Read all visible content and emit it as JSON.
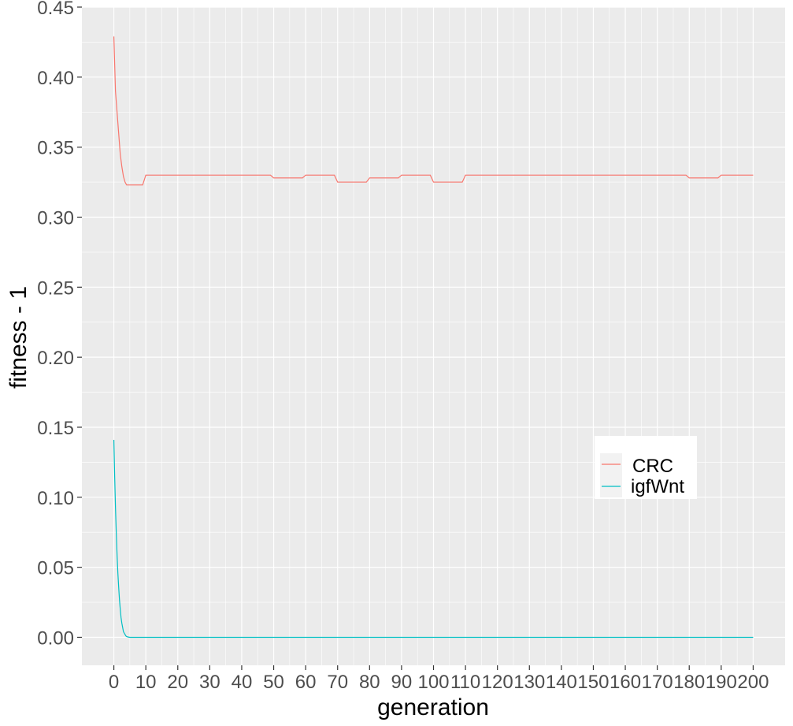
{
  "chart_data": {
    "type": "line",
    "title": "",
    "xlabel": "generation",
    "ylabel": "fitness - 1",
    "xlim": [
      -10,
      210
    ],
    "ylim": [
      -0.02,
      0.45
    ],
    "x_ticks": [
      0,
      10,
      20,
      30,
      40,
      50,
      60,
      70,
      80,
      90,
      100,
      110,
      120,
      130,
      140,
      150,
      160,
      170,
      180,
      190,
      200
    ],
    "x_tick_labels": [
      "0",
      "10",
      "20",
      "30",
      "40",
      "50",
      "60",
      "70",
      "80",
      "90",
      "100",
      "110",
      "120",
      "130",
      "140",
      "150",
      "160",
      "170",
      "180",
      "190",
      "200"
    ],
    "y_ticks": [
      0.0,
      0.05,
      0.1,
      0.15,
      0.2,
      0.25,
      0.3,
      0.35,
      0.4,
      0.45
    ],
    "y_tick_labels": [
      "0.00",
      "0.05",
      "0.10",
      "0.15",
      "0.20",
      "0.25",
      "0.30",
      "0.35",
      "0.40",
      "0.45"
    ],
    "grid": true,
    "panel_background": "#ebebeb",
    "legend_position": "right-middle",
    "series": [
      {
        "name": "CRC",
        "color": "#f8766d",
        "x": [
          0,
          0.5,
          1,
          1.5,
          2,
          2.5,
          3,
          3.5,
          4,
          5,
          6,
          7,
          8,
          9,
          10,
          11,
          20,
          30,
          40,
          49,
          50,
          59,
          60,
          69,
          70,
          79,
          80,
          89,
          90,
          99,
          100,
          109,
          110,
          120,
          130,
          140,
          150,
          160,
          170,
          179,
          180,
          189,
          190,
          200
        ],
        "y": [
          0.429,
          0.39,
          0.375,
          0.36,
          0.345,
          0.336,
          0.329,
          0.325,
          0.323,
          0.323,
          0.323,
          0.323,
          0.323,
          0.323,
          0.33,
          0.33,
          0.33,
          0.33,
          0.33,
          0.33,
          0.328,
          0.328,
          0.33,
          0.33,
          0.325,
          0.325,
          0.328,
          0.328,
          0.33,
          0.33,
          0.325,
          0.325,
          0.33,
          0.33,
          0.33,
          0.33,
          0.33,
          0.33,
          0.33,
          0.33,
          0.328,
          0.328,
          0.33,
          0.33
        ]
      },
      {
        "name": "igfWnt",
        "color": "#00bfc4",
        "x": [
          0,
          0.25,
          0.5,
          0.75,
          1,
          1.25,
          1.5,
          1.75,
          2,
          2.25,
          2.5,
          2.75,
          3,
          3.25,
          3.5,
          3.75,
          4,
          4.5,
          5,
          6,
          8,
          10,
          20,
          50,
          100,
          150,
          200
        ],
        "y": [
          0.141,
          0.115,
          0.093,
          0.075,
          0.059,
          0.046,
          0.036,
          0.027,
          0.02,
          0.014,
          0.01,
          0.007,
          0.004,
          0.003,
          0.002,
          0.001,
          0.0005,
          0.0002,
          0.0,
          0.0,
          0.0,
          0.0,
          0.0,
          0.0,
          0.0,
          0.0,
          0.0
        ]
      }
    ]
  }
}
